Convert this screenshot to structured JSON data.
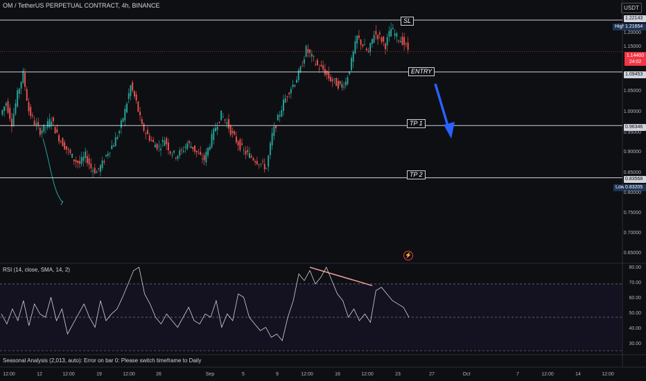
{
  "header": {
    "title": "OM / TetherUS PERPETUAL CONTRACT, 4h, BINANCE",
    "currency_button": "USDT"
  },
  "colors": {
    "background": "#0e0f13",
    "up": "#26a69a",
    "down": "#ef5350",
    "level_line": "#d1d4dc",
    "arrow": "#2962ff",
    "rsi_line": "#d1d4dc",
    "divergence": "#f7a3a0"
  },
  "levels": [
    {
      "name": "SL",
      "label": "SL",
      "price_tag": "1.22143"
    },
    {
      "name": "ENTRY",
      "label": "ENTRY",
      "price_tag": "1.09453"
    },
    {
      "name": "TP 1",
      "label": "TP 1",
      "price_tag": "0.96346"
    },
    {
      "name": "TP 2",
      "label": "TP 2",
      "price_tag": "0.83568"
    }
  ],
  "high_low": {
    "high_label": "High",
    "high_value": "1.21654",
    "low_label": "Low",
    "low_value": "0.83205"
  },
  "current_price": {
    "value": "1.14400",
    "countdown": "24:02"
  },
  "price_axis": [
    "1.20000",
    "1.15000",
    "1.05000",
    "1.00000",
    "0.95000",
    "0.90000",
    "0.85000",
    "0.80000",
    "0.75000",
    "0.70000",
    "0.65000"
  ],
  "rsi": {
    "title": "RSI (14, close, SMA, 14, 2)",
    "axis": [
      "80.00",
      "70.00",
      "60.00",
      "50.00",
      "40.00",
      "30.00"
    ]
  },
  "seasonal_msg": "Seasonal Analysis (2,013, auto): Error on bar 0: Please switch timeframe to Daily",
  "time_axis": [
    "12:00",
    "12",
    "12:00",
    "19",
    "12:00",
    "26",
    "Sep",
    "5",
    "9",
    "12:00",
    "16",
    "12:00",
    "23",
    "27",
    "Oct",
    "7",
    "12:00",
    "14",
    "12:00"
  ],
  "chart_data": {
    "type": "candlestick",
    "symbol": "OM / TetherUS PERPETUAL CONTRACT",
    "interval": "4h",
    "ylim": [
      0.63,
      1.24
    ],
    "horizontal_levels": {
      "SL": 1.22143,
      "ENTRY": 1.09453,
      "TP 1": 0.96346,
      "TP 2": 0.83568
    },
    "high": 1.21654,
    "low": 0.83205,
    "last": 1.144,
    "price_path": [
      0.99,
      1.02,
      0.97,
      1.04,
      1.09,
      1.0,
      0.97,
      0.95,
      0.96,
      0.98,
      0.94,
      0.92,
      0.9,
      0.88,
      0.87,
      0.89,
      0.86,
      0.85,
      0.87,
      0.9,
      0.92,
      0.95,
      1.0,
      1.06,
      1.02,
      0.96,
      0.94,
      0.92,
      0.91,
      0.93,
      0.9,
      0.89,
      0.9,
      0.92,
      0.91,
      0.89,
      0.88,
      0.92,
      0.96,
      0.99,
      0.97,
      0.94,
      0.92,
      0.9,
      0.89,
      0.88,
      0.87,
      0.86,
      0.94,
      0.98,
      1.02,
      1.05,
      1.07,
      1.1,
      1.15,
      1.13,
      1.11,
      1.1,
      1.08,
      1.07,
      1.06,
      1.07,
      1.12,
      1.18,
      1.16,
      1.14,
      1.19,
      1.18,
      1.16,
      1.2,
      1.18,
      1.17,
      1.15
    ],
    "rsi_ylim": [
      28,
      82
    ],
    "rsi_bands": [
      70,
      50,
      30
    ],
    "rsi_path": [
      52,
      46,
      55,
      48,
      60,
      45,
      58,
      52,
      50,
      62,
      48,
      55,
      40,
      46,
      52,
      58,
      50,
      44,
      60,
      48,
      52,
      55,
      62,
      70,
      78,
      80,
      64,
      58,
      50,
      46,
      52,
      48,
      44,
      50,
      56,
      48,
      46,
      52,
      50,
      60,
      44,
      52,
      48,
      64,
      62,
      50,
      46,
      42,
      44,
      38,
      40,
      36,
      50,
      60,
      76,
      72,
      78,
      70,
      74,
      80,
      72,
      64,
      60,
      50,
      55,
      48,
      52,
      47,
      66,
      68,
      64,
      60,
      58,
      56,
      50
    ]
  }
}
